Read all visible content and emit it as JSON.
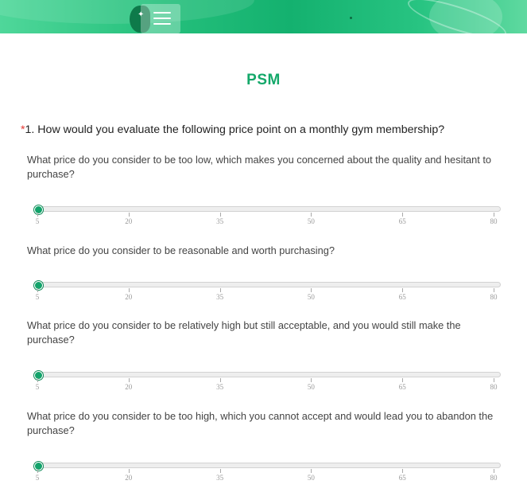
{
  "header": {
    "logo": "leaf-menu-icon"
  },
  "survey": {
    "title": "PSM",
    "question": {
      "required_mark": "*",
      "text": "1. How would you evaluate the following price point on a monthly gym membership?"
    },
    "scale": {
      "min": 5,
      "max": 80,
      "ticks": [
        "5",
        "20",
        "35",
        "50",
        "65",
        "80"
      ]
    },
    "items": [
      {
        "label": "What price do you consider to be too low, which makes you concerned about the quality and hesitant to purchase?",
        "value": 5
      },
      {
        "label": "What price do you consider to be reasonable and worth purchasing?",
        "value": 5
      },
      {
        "label": "What price do you consider to be relatively high but still acceptable, and you would still make the purchase?",
        "value": 5
      },
      {
        "label": "What price do you consider to be too high, which you cannot accept and would lead you to abandon the purchase?",
        "value": 5
      }
    ]
  },
  "colors": {
    "accent": "#14a86a",
    "required": "#e53935"
  }
}
